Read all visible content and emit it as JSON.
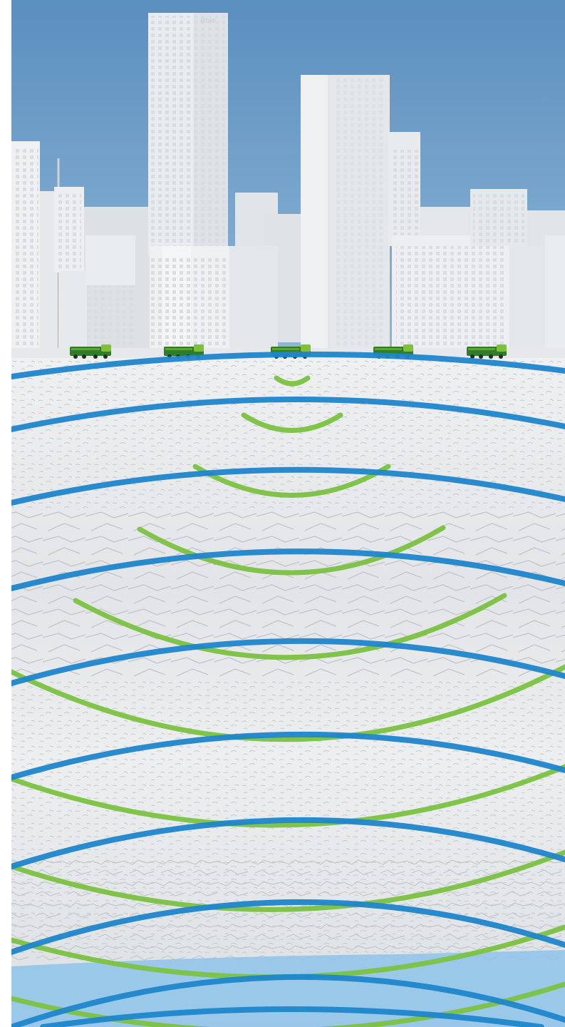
{
  "scene": {
    "description_free": true,
    "building_sign": "Bow",
    "truck_count": 5,
    "colors": {
      "sky_top": "#5b8fbf",
      "sky_bottom": "#8fb6d6",
      "building": "#eef0f2",
      "building_shade": "#d6dade",
      "ground": "#e9eaec",
      "rock_dark": "#c9ccd0",
      "truck_body": "#2f7d2a",
      "truck_cab": "#7fbf3a",
      "wave_blue": "#1f86cc",
      "wave_green": "#7cc242",
      "water_layer": "#8ec3ea"
    }
  }
}
